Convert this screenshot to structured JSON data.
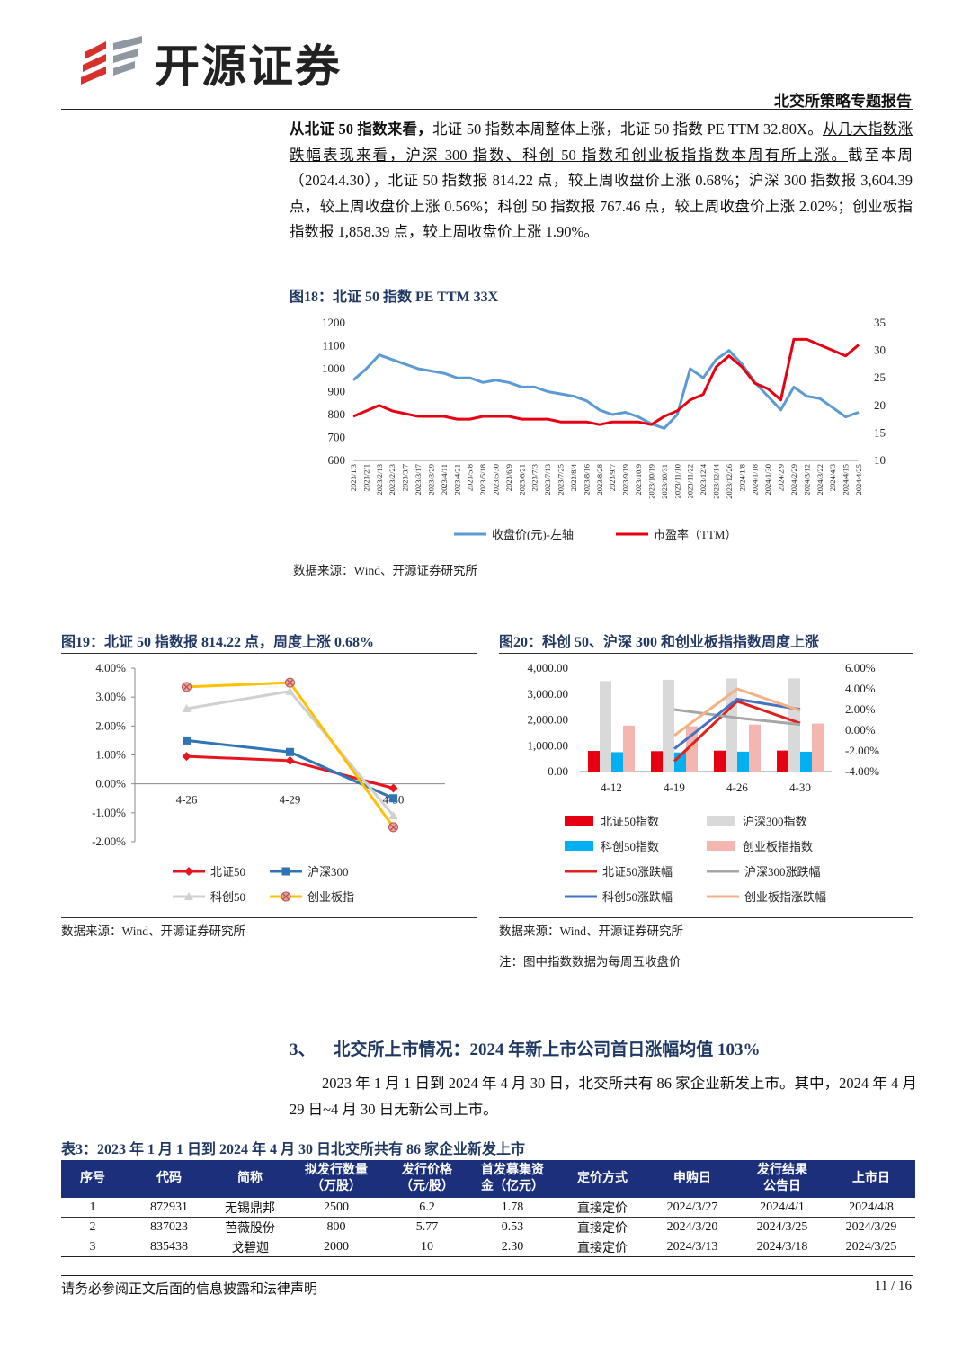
{
  "header": {
    "brand": "开源证券",
    "report_type": "北交所策略专题报告"
  },
  "para1": [
    {
      "text": "从北证 50 指数来看，",
      "style": "bold"
    },
    {
      "text": "北证 50 指数本周整体上涨，北证 50 指数 PE TTM 32.80X。",
      "style": "normal"
    },
    {
      "text": "从几大指数涨跌幅表现来看，沪深 300 指数、科创 50 指数和创业板指指数本周有所上涨。",
      "style": "underline"
    },
    {
      "text": "截至本周（2024.4.30），北证 50 指数报 814.22 点，较上周收盘价上涨 0.68%；沪深 300 指数报 3,604.39 点，较上周收盘价上涨 0.56%；科创 50 指数报 767.46 点，较上周收盘价上涨 2.02%；创业板指指数报 1,858.39 点，较上周收盘价上涨 1.90%。",
      "style": "normal"
    }
  ],
  "chart_data": [
    {
      "type": "line",
      "title": "图18：北证 50 指数 PE TTM 33X",
      "x": [
        "2023/1/3",
        "2023/2/1",
        "2023/2/13",
        "2023/2/23",
        "2023/3/7",
        "2023/3/17",
        "2023/3/29",
        "2023/4/11",
        "2023/4/21",
        "2023/5/8",
        "2023/5/18",
        "2023/5/30",
        "2023/6/9",
        "2023/6/21",
        "2023/7/3",
        "2023/7/13",
        "2023/7/25",
        "2023/8/4",
        "2023/8/16",
        "2023/8/28",
        "2023/9/7",
        "2023/9/19",
        "2023/10/9",
        "2023/10/19",
        "2023/10/31",
        "2023/11/10",
        "2023/11/22",
        "2023/12/4",
        "2023/12/14",
        "2023/12/26",
        "2024/1/8",
        "2024/1/18",
        "2024/1/30",
        "2024/2/9",
        "2024/2/29",
        "2024/3/12",
        "2024/3/22",
        "2024/4/3",
        "2024/4/15",
        "2024/4/25"
      ],
      "series": [
        {
          "name": "收盘价(元)-左轴",
          "color": "#5b9bd5",
          "values": [
            950,
            1000,
            1060,
            1040,
            1020,
            1000,
            990,
            980,
            960,
            960,
            940,
            950,
            940,
            920,
            920,
            900,
            890,
            880,
            860,
            820,
            800,
            810,
            790,
            760,
            740,
            800,
            1000,
            960,
            1040,
            1080,
            1020,
            940,
            880,
            820,
            920,
            880,
            870,
            830,
            790,
            810
          ]
        },
        {
          "name": "市盈率（TTM）",
          "color": "#e60012",
          "axis": "y2",
          "values": [
            18,
            19,
            20,
            19,
            18.5,
            18,
            18,
            18,
            17.5,
            17.5,
            18,
            18,
            18,
            17.5,
            17.5,
            17.5,
            17,
            17,
            17,
            16.5,
            17,
            17,
            17,
            16.5,
            18,
            19,
            21,
            22,
            27,
            29,
            27,
            24,
            23,
            21,
            32,
            32,
            31,
            30,
            29,
            31
          ]
        }
      ],
      "ylim": [
        600,
        1200
      ],
      "yticks": [
        600,
        700,
        800,
        900,
        1000,
        1100,
        1200
      ],
      "y2lim": [
        10,
        35
      ],
      "y2ticks": [
        10,
        15,
        20,
        25,
        30,
        35
      ],
      "legend": "bottom",
      "source": "数据来源：Wind、开源证券研究所"
    },
    {
      "type": "line",
      "title": "图19：北证 50 指数报 814.22 点，周度上涨 0.68%",
      "categories": [
        "4-26",
        "4-29",
        "4-30"
      ],
      "series": [
        {
          "name": "北证50",
          "color": "#e8141e",
          "marker": "diamond",
          "values": [
            0.95,
            0.8,
            -0.15
          ]
        },
        {
          "name": "沪深300",
          "color": "#2e75b6",
          "marker": "square",
          "values": [
            1.5,
            1.1,
            -0.5
          ]
        },
        {
          "name": "科创50",
          "color": "#d0d0d0",
          "marker": "triangle",
          "values": [
            2.6,
            3.2,
            -1.1
          ]
        },
        {
          "name": "创业板指",
          "color": "#ffc000",
          "marker": "x-circle",
          "values": [
            3.35,
            3.5,
            -1.5
          ]
        }
      ],
      "ylim": [
        -2,
        4
      ],
      "yticks": [
        {
          "value": -2,
          "label": "-2.00%"
        },
        {
          "value": -1,
          "label": "-1.00%"
        },
        {
          "value": 0,
          "label": "0.00%"
        },
        {
          "value": 1,
          "label": "1.00%"
        },
        {
          "value": 2,
          "label": "2.00%"
        },
        {
          "value": 3,
          "label": "3.00%"
        },
        {
          "value": 4,
          "label": "4.00%"
        }
      ],
      "legend": "bottom",
      "source": "数据来源：Wind、开源证券研究所"
    },
    {
      "type": "bar",
      "title": "图20：科创 50、沪深 300 和创业板指指数周度上涨",
      "categories": [
        "4-12",
        "4-19",
        "4-26",
        "4-30"
      ],
      "series": [
        {
          "name": "北证50指数",
          "type": "bar",
          "color": "#e60012",
          "values": [
            800,
            790,
            810,
            814.22
          ]
        },
        {
          "name": "沪深300指数",
          "type": "bar",
          "color": "#d9d9d9",
          "values": [
            3500,
            3550,
            3600,
            3604.39
          ]
        },
        {
          "name": "科创50指数",
          "type": "bar",
          "color": "#00b0f0",
          "values": [
            750,
            740,
            770,
            767.46
          ]
        },
        {
          "name": "创业板指指数",
          "type": "bar",
          "color": "#f4b6b0",
          "values": [
            1780,
            1750,
            1820,
            1858.39
          ]
        },
        {
          "name": "北证50涨跌幅",
          "type": "line",
          "axis": "y2",
          "color": "#e0201b",
          "values": [
            null,
            -3,
            2.8,
            0.68
          ]
        },
        {
          "name": "沪深300涨跌幅",
          "type": "line",
          "axis": "y2",
          "color": "#a6a6a6",
          "values": [
            null,
            2,
            1.2,
            0.56
          ]
        },
        {
          "name": "科创50涨跌幅",
          "type": "line",
          "axis": "y2",
          "color": "#4472c4",
          "values": [
            null,
            -1.8,
            3,
            2.02
          ]
        },
        {
          "name": "创业板指涨跌幅",
          "type": "line",
          "axis": "y2",
          "color": "#f4b183",
          "values": [
            null,
            -0.5,
            4,
            1.9
          ]
        }
      ],
      "ylim": [
        0,
        4000
      ],
      "yticks": [
        {
          "value": 0,
          "label": "0.00"
        },
        {
          "value": 1000,
          "label": "1,000.00"
        },
        {
          "value": 2000,
          "label": "2,000.00"
        },
        {
          "value": 3000,
          "label": "3,000.00"
        },
        {
          "value": 4000,
          "label": "4,000.00"
        }
      ],
      "y2lim": [
        -4,
        6
      ],
      "y2ticks": [
        {
          "value": -4,
          "label": "-4.00%"
        },
        {
          "value": -2,
          "label": "-2.00%"
        },
        {
          "value": 0,
          "label": "0.00%"
        },
        {
          "value": 2,
          "label": "2.00%"
        },
        {
          "value": 4,
          "label": "4.00%"
        },
        {
          "value": 6,
          "label": "6.00%"
        }
      ],
      "legend": "bottom",
      "source": "数据来源：Wind、开源证券研究所",
      "note": "注：图中指数数据为每周五收盘价"
    }
  ],
  "section3": {
    "number": "3、",
    "title": "北交所上市情况：2024 年新上市公司首日涨幅均值 103%",
    "para": "2023 年 1 月 1 日到 2024 年 4 月 30 日，北交所共有 86 家企业新发上市。其中，2024 年 4 月 29 日~4 月 30 日无新公司上市。"
  },
  "table": {
    "title": "表3：2023 年 1 月 1 日到 2024 年 4 月 30 日北交所共有 86 家企业新发上市",
    "header": [
      "序号",
      "代码",
      "简称",
      "拟发行数量\n（万股）",
      "发行价格\n（元/股）",
      "首发募集资\n金（亿元）",
      "定价方式",
      "申购日",
      "发行结果\n公告日",
      "上市日"
    ],
    "rows": [
      [
        "1",
        "872931",
        "无锡鼎邦",
        "2500",
        "6.2",
        "1.78",
        "直接定价",
        "2024/3/27",
        "2024/4/1",
        "2024/4/8"
      ],
      [
        "2",
        "837023",
        "芭薇股份",
        "800",
        "5.77",
        "0.53",
        "直接定价",
        "2024/3/20",
        "2024/3/25",
        "2024/3/29"
      ],
      [
        "3",
        "835438",
        "戈碧迦",
        "2000",
        "10",
        "2.30",
        "直接定价",
        "2024/3/13",
        "2024/3/18",
        "2024/3/25"
      ]
    ]
  },
  "footer": {
    "disclaimer": "请务必参阅正文后面的信息披露和法律声明",
    "page": "11 / 16"
  }
}
